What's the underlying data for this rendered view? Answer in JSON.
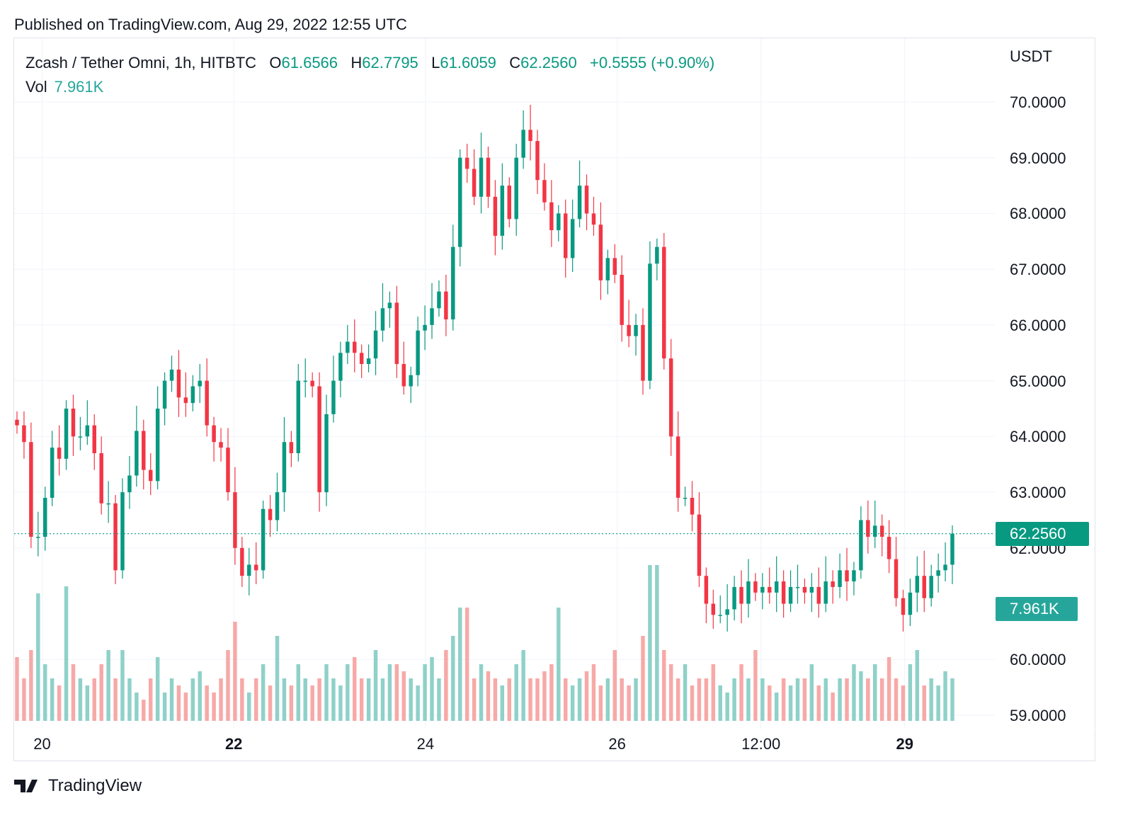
{
  "published": "Published on TradingView.com, Aug 29, 2022 12:55 UTC",
  "legend": {
    "symbol": "Zcash / Tether Omni, 1h, HITBTC",
    "o_label": "O",
    "o": "61.6566",
    "h_label": "H",
    "h": "62.7795",
    "l_label": "L",
    "l": "61.6059",
    "c_label": "C",
    "c": "62.2560",
    "change": "+0.5555 (+0.90%)",
    "vol_label": "Vol",
    "vol": "7.961K"
  },
  "logo": "TradingView",
  "colors": {
    "up": "#089981",
    "down": "#f23645",
    "vol_up": "#8fd1c9",
    "vol_down": "#f7a9a7",
    "last_price": "#089981",
    "last_vol": "#26a69a"
  },
  "chart_data": {
    "type": "candlestick",
    "title": "Zcash / Tether Omni, 1h, HITBTC",
    "currency": "USDT",
    "ylim": [
      59,
      70
    ],
    "y_ticks": [
      "70.0000",
      "69.0000",
      "68.0000",
      "67.0000",
      "66.0000",
      "65.0000",
      "64.0000",
      "63.0000",
      "62.0000",
      "60.0000",
      "59.0000"
    ],
    "y_tick_values": [
      70,
      69,
      68,
      67,
      66,
      65,
      64,
      63,
      62,
      60,
      59
    ],
    "x_ticks": [
      {
        "label": "20",
        "bold": false,
        "hour": 7
      },
      {
        "label": "22",
        "bold": true,
        "hour": 55
      },
      {
        "label": "24",
        "bold": false,
        "hour": 103
      },
      {
        "label": "26",
        "bold": false,
        "hour": 151
      },
      {
        "label": "12:00",
        "bold": false,
        "hour": 187
      },
      {
        "label": "29",
        "bold": true,
        "hour": 223
      }
    ],
    "hours_span": 235,
    "last_price": 62.256,
    "last_price_label": "62.2560",
    "last_volume_label": "7.961K",
    "closes": [
      64.2,
      63.9,
      62.2,
      62.2,
      62.9,
      63.8,
      63.6,
      64.5,
      64.0,
      64.0,
      64.2,
      63.7,
      62.8,
      62.8,
      61.6,
      63.0,
      63.3,
      64.1,
      63.4,
      63.2,
      64.5,
      65.0,
      65.2,
      64.7,
      64.6,
      64.9,
      65.0,
      64.2,
      63.9,
      63.8,
      63.0,
      62.0,
      61.5,
      61.7,
      61.6,
      62.7,
      62.5,
      63.0,
      63.9,
      63.7,
      65.0,
      65.0,
      64.9,
      63.0,
      64.4,
      65.0,
      65.5,
      65.7,
      65.5,
      65.3,
      65.4,
      65.9,
      66.3,
      66.4,
      65.3,
      64.9,
      65.1,
      65.9,
      66.0,
      66.3,
      66.6,
      66.1,
      67.4,
      69.0,
      68.8,
      68.3,
      69.0,
      68.3,
      67.6,
      68.5,
      67.9,
      69.0,
      69.5,
      69.3,
      68.6,
      68.2,
      67.7,
      68.0,
      67.2,
      67.9,
      68.5,
      68.0,
      67.8,
      66.8,
      67.2,
      66.9,
      66.0,
      65.8,
      66.0,
      65.0,
      67.1,
      67.4,
      65.4,
      64.0,
      62.9,
      62.9,
      62.6,
      61.5,
      61.0,
      60.8,
      60.8,
      60.9,
      61.3,
      61.0,
      61.4,
      61.2,
      61.3,
      61.2,
      61.4,
      61.0,
      61.3,
      61.3,
      61.2,
      61.3,
      61.0,
      61.4,
      61.3,
      61.6,
      61.4,
      61.6,
      62.5,
      62.2,
      62.4,
      62.2,
      61.8,
      61.1,
      60.8,
      61.2,
      61.5,
      61.1,
      61.5,
      61.6,
      61.7,
      62.256
    ],
    "volumes_k": [
      4.5,
      3,
      5,
      9,
      4,
      3,
      2.5,
      9.5,
      4,
      3,
      2.5,
      3,
      4,
      5,
      3,
      5,
      3,
      2,
      1.5,
      3,
      4.5,
      2,
      3,
      2.5,
      2,
      3,
      3.5,
      2.5,
      2,
      3,
      5,
      7,
      3,
      2,
      3,
      4,
      2.5,
      6,
      3,
      2.5,
      4,
      3,
      2.5,
      3,
      4,
      3,
      2.5,
      4,
      4.5,
      3,
      3,
      5,
      3,
      4,
      4,
      3.5,
      3,
      2.5,
      4,
      4.5,
      3,
      5,
      6,
      8,
      8,
      3,
      4,
      3.5,
      3,
      2.5,
      3,
      4,
      5,
      3,
      3,
      3.5,
      4,
      8,
      3,
      2.5,
      3,
      3.5,
      4,
      2.5,
      3,
      5,
      3,
      2.5,
      3,
      6,
      11,
      11,
      5,
      4,
      3,
      4,
      2.5,
      3,
      3,
      4,
      2.5,
      2,
      3,
      4,
      3,
      5,
      3,
      2.5,
      2,
      3,
      2.5,
      3,
      3,
      4,
      2.5,
      3,
      2,
      3,
      3,
      4,
      3.5,
      3,
      4,
      3,
      4.5,
      3,
      2.5,
      4,
      5,
      2.5,
      3,
      2.5,
      3.5,
      3,
      4,
      7.961
    ]
  }
}
